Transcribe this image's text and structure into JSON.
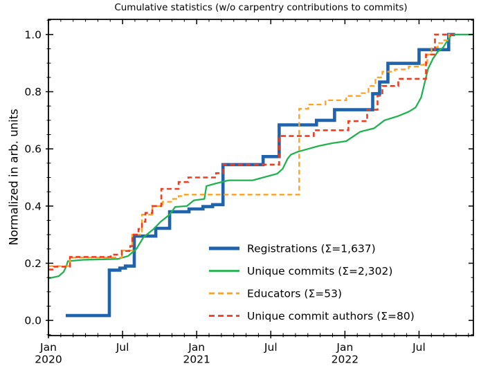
{
  "chart_data": {
    "type": "line",
    "title": "Cumulative statistics (w/o carpentry contributions to commits)",
    "ylabel": "Normalized in arb. units",
    "xlabel": "",
    "x_unit": "months since January 2020",
    "xlim": [
      0,
      34.4
    ],
    "ylim": [
      -0.053,
      1.053
    ],
    "grid": false,
    "legend_position": "inside lower right",
    "x_major_ticks": [
      {
        "x": 0,
        "line1": "Jan",
        "line2": "2020"
      },
      {
        "x": 6,
        "line1": "Jul",
        "line2": ""
      },
      {
        "x": 12,
        "line1": "Jan",
        "line2": "2021"
      },
      {
        "x": 18,
        "line1": "Jul",
        "line2": ""
      },
      {
        "x": 24,
        "line1": "Jan",
        "line2": "2022"
      },
      {
        "x": 30,
        "line1": "Jul",
        "line2": ""
      }
    ],
    "x_minor_step": 1,
    "y_major_ticks": [
      "0.0",
      "0.2",
      "0.4",
      "0.6",
      "0.8",
      "1.0"
    ],
    "y_minor_step": 0.05,
    "series": [
      {
        "name": "Registrations",
        "legend_label": "Registrations  (Σ=1,637)",
        "total": "1,637",
        "color": "#1f63ad",
        "line_style": "solid",
        "line_width": 4.6,
        "step": true,
        "points": [
          [
            1.4,
            0.017
          ],
          [
            4.93,
            0.176
          ],
          [
            5.78,
            0.183
          ],
          [
            6.23,
            0.19
          ],
          [
            6.95,
            0.295
          ],
          [
            8.69,
            0.322
          ],
          [
            9.81,
            0.38
          ],
          [
            11.38,
            0.39
          ],
          [
            12.51,
            0.398
          ],
          [
            13.29,
            0.405
          ],
          [
            14.13,
            0.545
          ],
          [
            17.38,
            0.573
          ],
          [
            18.68,
            0.684
          ],
          [
            21.7,
            0.7
          ],
          [
            23.16,
            0.737
          ],
          [
            26.25,
            0.793
          ],
          [
            26.81,
            0.834
          ],
          [
            27.48,
            0.899
          ],
          [
            30.0,
            0.947
          ],
          [
            32.4,
            1.0
          ],
          [
            32.92,
            1.0
          ]
        ]
      },
      {
        "name": "Unique commits",
        "legend_label": "Unique commits (Σ=2,302)",
        "total": "2,302",
        "color": "#1fb24e",
        "line_style": "solid",
        "line_width": 2.3,
        "step": false,
        "points": [
          [
            0,
            0.147
          ],
          [
            0.84,
            0.155
          ],
          [
            1.23,
            0.17
          ],
          [
            1.45,
            0.19
          ],
          [
            1.57,
            0.207
          ],
          [
            2.8,
            0.212
          ],
          [
            5.6,
            0.215
          ],
          [
            6.45,
            0.225
          ],
          [
            7.12,
            0.25
          ],
          [
            7.68,
            0.29
          ],
          [
            7.96,
            0.3
          ],
          [
            8.52,
            0.32
          ],
          [
            9.08,
            0.345
          ],
          [
            9.81,
            0.37
          ],
          [
            10.26,
            0.397
          ],
          [
            11.21,
            0.4
          ],
          [
            11.77,
            0.42
          ],
          [
            12.62,
            0.425
          ],
          [
            12.79,
            0.47
          ],
          [
            13.46,
            0.478
          ],
          [
            14.58,
            0.49
          ],
          [
            16.54,
            0.49
          ],
          [
            17.38,
            0.5
          ],
          [
            18.51,
            0.513
          ],
          [
            18.96,
            0.53
          ],
          [
            19.35,
            0.565
          ],
          [
            19.63,
            0.58
          ],
          [
            20.19,
            0.59
          ],
          [
            21.03,
            0.6
          ],
          [
            21.87,
            0.61
          ],
          [
            22.99,
            0.62
          ],
          [
            24.11,
            0.627
          ],
          [
            25.24,
            0.66
          ],
          [
            26.36,
            0.672
          ],
          [
            27.2,
            0.7
          ],
          [
            28.32,
            0.715
          ],
          [
            29.16,
            0.73
          ],
          [
            29.72,
            0.745
          ],
          [
            30.17,
            0.78
          ],
          [
            30.45,
            0.83
          ],
          [
            30.73,
            0.88
          ],
          [
            31.12,
            0.915
          ],
          [
            31.52,
            0.94
          ],
          [
            31.96,
            0.955
          ],
          [
            32.25,
            0.975
          ],
          [
            32.64,
            1.0
          ],
          [
            34.38,
            1.0
          ]
        ]
      },
      {
        "name": "Educators",
        "legend_label": "Educators (Σ=53)",
        "total": "53",
        "color": "#ffa01e",
        "line_style": "dashed",
        "line_width": 2.3,
        "step": true,
        "points": [
          [
            0,
            0.19
          ],
          [
            1.74,
            0.22
          ],
          [
            5.94,
            0.245
          ],
          [
            6.79,
            0.3
          ],
          [
            7.57,
            0.37
          ],
          [
            8.41,
            0.4
          ],
          [
            9.25,
            0.415
          ],
          [
            10.09,
            0.425
          ],
          [
            10.54,
            0.435
          ],
          [
            10.93,
            0.44
          ],
          [
            20.3,
            0.74
          ],
          [
            21.03,
            0.755
          ],
          [
            22.43,
            0.77
          ],
          [
            24.11,
            0.785
          ],
          [
            25.24,
            0.795
          ],
          [
            25.91,
            0.82
          ],
          [
            26.47,
            0.85
          ],
          [
            27.03,
            0.87
          ],
          [
            28.04,
            0.878
          ],
          [
            29.16,
            0.888
          ],
          [
            30.0,
            0.894
          ],
          [
            30.39,
            0.9
          ],
          [
            30.67,
            0.93
          ],
          [
            31.01,
            0.955
          ],
          [
            31.52,
            0.97
          ],
          [
            31.96,
            0.98
          ],
          [
            32.41,
            1.0
          ],
          [
            32.7,
            1.0
          ]
        ]
      },
      {
        "name": "Unique commit authors",
        "legend_label": "Unique commit authors (Σ=80)",
        "total": "80",
        "color": "#f03b1d",
        "line_style": "dashed",
        "line_width": 2.6,
        "step": true,
        "points": [
          [
            0,
            0.178
          ],
          [
            0.45,
            0.188
          ],
          [
            1.74,
            0.222
          ],
          [
            5.05,
            0.23
          ],
          [
            5.94,
            0.243
          ],
          [
            6.62,
            0.26
          ],
          [
            6.79,
            0.3
          ],
          [
            7.29,
            0.32
          ],
          [
            7.57,
            0.345
          ],
          [
            7.85,
            0.376
          ],
          [
            8.41,
            0.4
          ],
          [
            9.14,
            0.46
          ],
          [
            10.54,
            0.484
          ],
          [
            11.33,
            0.5
          ],
          [
            13.57,
            0.515
          ],
          [
            14.13,
            0.545
          ],
          [
            18.68,
            0.645
          ],
          [
            21.48,
            0.665
          ],
          [
            24.28,
            0.697
          ],
          [
            25.8,
            0.737
          ],
          [
            26.64,
            0.786
          ],
          [
            27.03,
            0.82
          ],
          [
            28.32,
            0.845
          ],
          [
            30.56,
            0.93
          ],
          [
            31.29,
            1.0
          ],
          [
            32.8,
            1.0
          ]
        ]
      }
    ]
  }
}
